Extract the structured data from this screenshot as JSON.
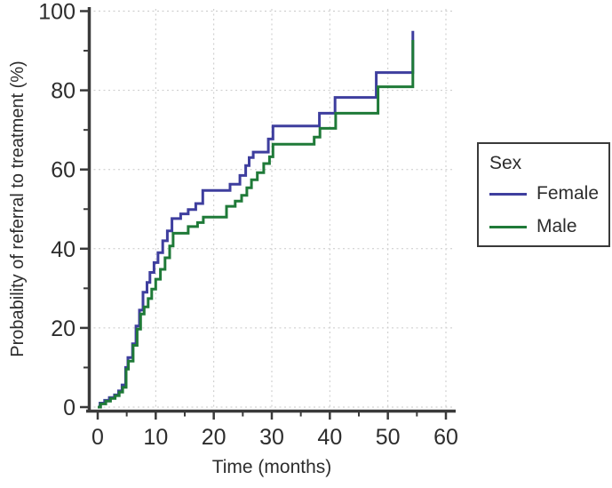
{
  "figure": {
    "background": "#ffffff"
  },
  "chart_data": {
    "type": "line",
    "subtype": "kaplan-meier-step",
    "title": "",
    "xlabel": "Time (months)",
    "ylabel": "Probability of referral to treatment (%)",
    "xlim": [
      0,
      60
    ],
    "ylim": [
      0,
      100
    ],
    "x_ticks": [
      0,
      10,
      20,
      30,
      40,
      50,
      60
    ],
    "x_minor_ticks": [
      5,
      15,
      25,
      35,
      45,
      55
    ],
    "y_ticks": [
      0,
      20,
      40,
      60,
      80,
      100
    ],
    "y_minor_ticks": [
      10,
      30,
      50,
      70,
      90
    ],
    "grid": {
      "show": true,
      "style": "dashed",
      "color": "#c9c9c9"
    },
    "axis_color": "#3a3a3a",
    "text_color": "#2d2d2d",
    "legend": {
      "title": "Sex",
      "position": "right",
      "entries": [
        "Female",
        "Male"
      ]
    },
    "series": [
      {
        "name": "Female",
        "color": "#3e3e9e",
        "step": "after",
        "points": [
          [
            0,
            0
          ],
          [
            0.4,
            1
          ],
          [
            1.2,
            1.7
          ],
          [
            2,
            2.4
          ],
          [
            2.9,
            3.1
          ],
          [
            3.6,
            4.1
          ],
          [
            4.2,
            5.6
          ],
          [
            4.8,
            10
          ],
          [
            5.2,
            12.5
          ],
          [
            6,
            16
          ],
          [
            6.6,
            20.5
          ],
          [
            7.2,
            24.5
          ],
          [
            7.8,
            29
          ],
          [
            8.5,
            31.5
          ],
          [
            9,
            34
          ],
          [
            9.7,
            36.5
          ],
          [
            10.4,
            39
          ],
          [
            11.2,
            42
          ],
          [
            12,
            44.5
          ],
          [
            12.8,
            47.6
          ],
          [
            14.3,
            48.8
          ],
          [
            15.6,
            49.9
          ],
          [
            16.9,
            51.4
          ],
          [
            18.1,
            54.7
          ],
          [
            22.8,
            56.3
          ],
          [
            24.5,
            58.5
          ],
          [
            25.5,
            61
          ],
          [
            26.1,
            63
          ],
          [
            26.8,
            64.4
          ],
          [
            29.4,
            67.7
          ],
          [
            30.2,
            71
          ],
          [
            38.2,
            74.2
          ],
          [
            40.9,
            78.2
          ],
          [
            48,
            84.5
          ],
          [
            54.3,
            95
          ]
        ]
      },
      {
        "name": "Male",
        "color": "#1f7a38",
        "step": "after",
        "points": [
          [
            0,
            0
          ],
          [
            0.5,
            0.8
          ],
          [
            1.4,
            1.5
          ],
          [
            2.2,
            2.2
          ],
          [
            3,
            2.9
          ],
          [
            3.7,
            3.8
          ],
          [
            4.3,
            5
          ],
          [
            4.9,
            9.6
          ],
          [
            5.3,
            11.6
          ],
          [
            6.1,
            15.6
          ],
          [
            6.8,
            19.7
          ],
          [
            7.4,
            23.5
          ],
          [
            8,
            25.3
          ],
          [
            8.7,
            27.4
          ],
          [
            9.3,
            29.8
          ],
          [
            10,
            32.3
          ],
          [
            10.8,
            34.8
          ],
          [
            11.6,
            37.7
          ],
          [
            12.4,
            40.7
          ],
          [
            13,
            43.9
          ],
          [
            15.6,
            45.6
          ],
          [
            17.2,
            46.6
          ],
          [
            18.2,
            48
          ],
          [
            22.2,
            50.7
          ],
          [
            23.7,
            52
          ],
          [
            24.8,
            53.5
          ],
          [
            25.7,
            55.4
          ],
          [
            26.5,
            57.4
          ],
          [
            27.5,
            59.2
          ],
          [
            28.6,
            61.5
          ],
          [
            29.6,
            63.2
          ],
          [
            30.2,
            66.4
          ],
          [
            37.3,
            68.2
          ],
          [
            38.3,
            70.4
          ],
          [
            41,
            74.2
          ],
          [
            48.3,
            80.9
          ],
          [
            54.3,
            92.7
          ]
        ]
      }
    ]
  }
}
